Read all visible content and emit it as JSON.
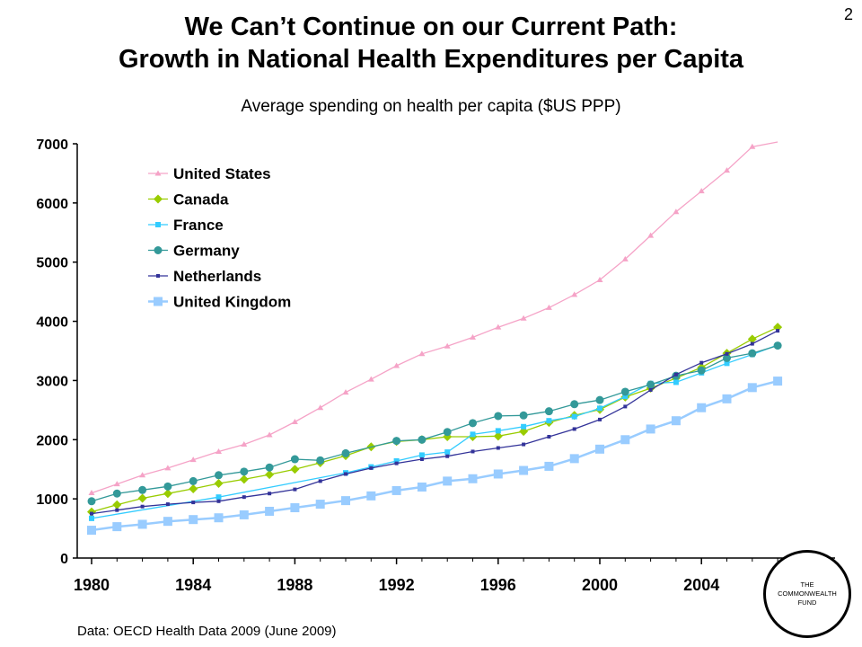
{
  "slide": {
    "title_line1": "We Can’t Continue on our Current Path:",
    "title_line2": "Growth in National Health Expenditures per Capita",
    "page_number": "2",
    "source": "Data: OECD Health Data 2009 (June 2009)",
    "logo_lines": [
      "THE",
      "COMMONWEALTH",
      "FUND"
    ]
  },
  "chart_data": {
    "type": "line",
    "title": "Average spending on health per capita ($US PPP)",
    "xlabel": "",
    "ylabel": "",
    "xlim": [
      1980,
      2007
    ],
    "ylim": [
      0,
      7000
    ],
    "yticks": [
      0,
      1000,
      2000,
      3000,
      4000,
      5000,
      6000,
      7000
    ],
    "ytick_labels": [
      "0",
      "1000",
      "2000",
      "3000",
      "4000",
      "5000",
      "6000",
      "7000"
    ],
    "xticks": [
      1980,
      1984,
      1988,
      1992,
      1996,
      2000,
      2004
    ],
    "xtick_labels": [
      "1980",
      "1984",
      "1988",
      "1992",
      "1996",
      "2000",
      "2004"
    ],
    "grid": false,
    "legend_position": "top-left",
    "x": [
      1980,
      1981,
      1982,
      1983,
      1984,
      1985,
      1986,
      1987,
      1988,
      1989,
      1990,
      1991,
      1992,
      1993,
      1994,
      1995,
      1996,
      1997,
      1998,
      1999,
      2000,
      2001,
      2002,
      2003,
      2004,
      2005,
      2006,
      2007
    ],
    "series": [
      {
        "name": "United States",
        "color": "#F5A3C7",
        "marker": "triangle",
        "values": [
          1100,
          1250,
          1400,
          1520,
          1660,
          1800,
          1920,
          2080,
          2300,
          2540,
          2800,
          3020,
          3250,
          3450,
          3580,
          3730,
          3900,
          4050,
          4230,
          4450,
          4700,
          5050,
          5450,
          5850,
          6200,
          6550,
          6950,
          7290
        ]
      },
      {
        "name": "Canada",
        "color": "#99CC00",
        "marker": "diamond",
        "values": [
          780,
          900,
          1010,
          1090,
          1170,
          1260,
          1330,
          1410,
          1500,
          1610,
          1730,
          1880,
          1970,
          2000,
          2050,
          2050,
          2060,
          2140,
          2290,
          2410,
          2510,
          2720,
          2870,
          3040,
          3220,
          3460,
          3700,
          3900
        ]
      },
      {
        "name": "France",
        "color": "#33CCFF",
        "marker": "square-small",
        "values": [
          670,
          null,
          null,
          null,
          null,
          1030,
          null,
          null,
          null,
          null,
          1440,
          1540,
          1640,
          1740,
          1790,
          2090,
          2150,
          2220,
          2320,
          2390,
          2530,
          2730,
          2950,
          2970,
          3130,
          3290,
          3440,
          3600
        ]
      },
      {
        "name": "Germany",
        "color": "#339999",
        "marker": "circle",
        "values": [
          960,
          1090,
          1150,
          1210,
          1300,
          1400,
          1460,
          1530,
          1670,
          1650,
          1770,
          null,
          1980,
          2000,
          2130,
          2280,
          2400,
          2410,
          2480,
          2600,
          2670,
          2810,
          2930,
          3080,
          3170,
          3380,
          3460,
          3590
        ]
      },
      {
        "name": "Netherlands",
        "color": "#333399",
        "marker": "square-tiny",
        "values": [
          750,
          810,
          870,
          910,
          940,
          960,
          1030,
          1090,
          1160,
          1300,
          1420,
          1520,
          1600,
          1670,
          1720,
          1800,
          1860,
          1920,
          2050,
          2180,
          2340,
          2560,
          2840,
          3100,
          3300,
          3450,
          3620,
          3840
        ]
      },
      {
        "name": "United Kingdom",
        "color": "#99CCFF",
        "marker": "square-large",
        "values": [
          470,
          530,
          570,
          620,
          650,
          680,
          730,
          790,
          850,
          910,
          970,
          1050,
          1140,
          1200,
          1300,
          1340,
          1420,
          1480,
          1550,
          1680,
          1840,
          2000,
          2180,
          2320,
          2540,
          2690,
          2880,
          2990
        ]
      }
    ]
  }
}
